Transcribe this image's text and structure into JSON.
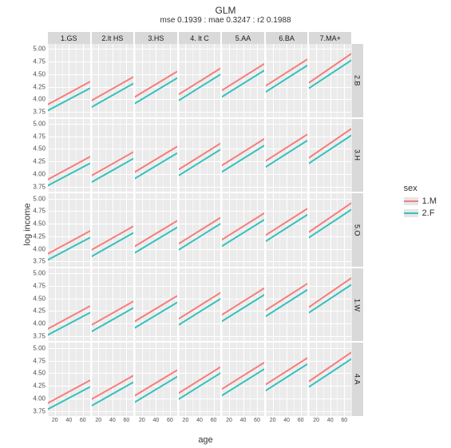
{
  "title": "GLM",
  "subtitle": "mse 0.1939 : mae 0.3247 : r2 0.1988",
  "ylabel": "log income",
  "xlabel": "age",
  "cols": [
    "1.GS",
    "2.lt HS",
    "3.HS",
    "4. lt C",
    "5.AA",
    "6.BA",
    "7.MA+"
  ],
  "rows": [
    "2.B",
    "3.H",
    "5.O",
    "1.W",
    "4.A"
  ],
  "legend": {
    "title": "sex",
    "items": [
      {
        "label": "1.M",
        "color": "#f57d7d"
      },
      {
        "label": "2.F",
        "color": "#33c1bd"
      }
    ]
  },
  "x": {
    "lim": [
      10,
      70
    ],
    "major": [
      20,
      40,
      60
    ],
    "minor": [
      10,
      30,
      50,
      70
    ],
    "tick_labels": [
      "20",
      "40",
      "60"
    ]
  },
  "y": {
    "lim": [
      3.65,
      5.1
    ],
    "major": [
      3.75,
      4.0,
      4.25,
      4.5,
      4.75,
      5.0
    ],
    "tick_labels": [
      "3.75",
      "4.00",
      "4.25",
      "4.50",
      "4.75",
      "5.00"
    ]
  },
  "colors": {
    "panel_bg": "#ebebeb",
    "strip_bg": "#d9d9d9",
    "grid": "#ffffff",
    "m": "#f57d7d",
    "f": "#33c1bd",
    "page_bg": "#ffffff",
    "text": "#333333"
  },
  "style": {
    "line_width": 2,
    "strip_fontsize": 9,
    "tick_fontsize": 8,
    "title_fontsize": 12,
    "subtitle_fontsize": 10,
    "label_fontsize": 11,
    "panel_gap": 2,
    "strip_h": 15,
    "strip_w": 15
  },
  "offsets": {
    "m": [
      [
        3.9,
        4.35
      ],
      [
        3.98,
        4.45
      ],
      [
        4.05,
        4.55
      ],
      [
        4.1,
        4.62
      ],
      [
        4.18,
        4.7
      ],
      [
        4.27,
        4.8
      ],
      [
        4.33,
        4.9
      ]
    ],
    "f": [
      [
        3.78,
        4.22
      ],
      [
        3.85,
        4.32
      ],
      [
        3.92,
        4.42
      ],
      [
        3.98,
        4.5
      ],
      [
        4.05,
        4.57
      ],
      [
        4.15,
        4.68
      ],
      [
        4.22,
        4.77
      ]
    ]
  }
}
